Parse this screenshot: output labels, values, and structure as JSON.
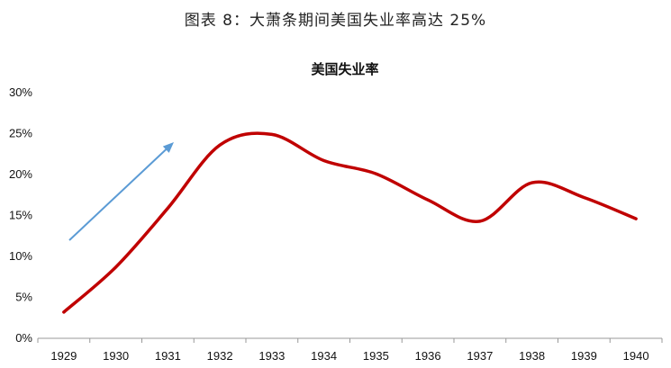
{
  "figure_title": "图表 8：大萧条期间美国失业率高达 25%",
  "chart_data": {
    "type": "line",
    "title": "美国失业率",
    "categories": [
      "1929",
      "1930",
      "1931",
      "1932",
      "1933",
      "1934",
      "1935",
      "1936",
      "1937",
      "1938",
      "1939",
      "1940"
    ],
    "series": [
      {
        "values": [
          3.2,
          8.7,
          15.9,
          23.6,
          24.9,
          21.7,
          20.1,
          16.9,
          14.3,
          19.0,
          17.2,
          14.6
        ]
      }
    ],
    "y_ticks": [
      "0%",
      "5%",
      "10%",
      "15%",
      "20%",
      "25%",
      "30%"
    ],
    "ylim": [
      0,
      30
    ],
    "grid": false,
    "line_color": "#c00000",
    "arrow_color": "#5b9bd5"
  }
}
